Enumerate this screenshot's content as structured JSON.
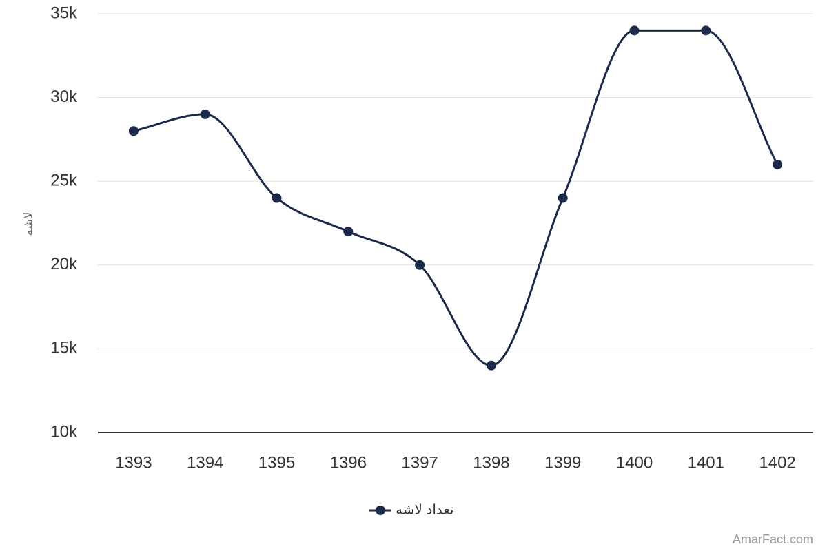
{
  "chart_data": {
    "type": "line",
    "categories": [
      "1393",
      "1394",
      "1395",
      "1396",
      "1397",
      "1398",
      "1399",
      "1400",
      "1401",
      "1402"
    ],
    "series": [
      {
        "name": "تعداد لاشه",
        "values": [
          28000,
          29000,
          24000,
          22000,
          20000,
          14000,
          24000,
          34000,
          34000,
          26000
        ],
        "color": "#1b2a4a"
      }
    ],
    "ylabel": "لاشه",
    "ylim": [
      10000,
      35000
    ],
    "yticks": [
      10000,
      15000,
      20000,
      25000,
      30000,
      35000
    ],
    "ytick_labels": [
      "10k",
      "15k",
      "20k",
      "25k",
      "30k",
      "35k"
    ],
    "grid": true,
    "legend_position": "bottom-center",
    "smooth": true
  },
  "credit": "AmarFact.com"
}
